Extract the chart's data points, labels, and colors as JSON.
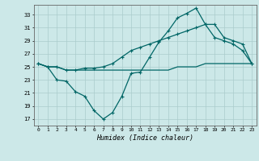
{
  "title": "",
  "xlabel": "Humidex (Indice chaleur)",
  "ylabel": "",
  "bg_color": "#cce8e8",
  "grid_color": "#aacccc",
  "line_color": "#006666",
  "xlim": [
    -0.5,
    23.5
  ],
  "ylim": [
    16.0,
    34.5
  ],
  "yticks": [
    17,
    19,
    21,
    23,
    25,
    27,
    29,
    31,
    33
  ],
  "xticks": [
    0,
    1,
    2,
    3,
    4,
    5,
    6,
    7,
    8,
    9,
    10,
    11,
    12,
    13,
    14,
    15,
    16,
    17,
    18,
    19,
    20,
    21,
    22,
    23
  ],
  "line1_x": [
    0,
    1,
    2,
    3,
    4,
    5,
    6,
    7,
    8,
    9,
    10,
    11,
    12,
    13,
    14,
    15,
    16,
    17,
    18,
    19,
    20,
    21,
    22,
    23
  ],
  "line1_y": [
    25.5,
    25.0,
    25.0,
    24.5,
    24.5,
    24.5,
    24.5,
    24.5,
    24.5,
    24.5,
    24.5,
    24.5,
    24.5,
    24.5,
    24.5,
    25.0,
    25.0,
    25.0,
    25.5,
    25.5,
    25.5,
    25.5,
    25.5,
    25.5
  ],
  "line2_x": [
    0,
    1,
    2,
    3,
    4,
    5,
    6,
    7,
    8,
    9,
    10,
    11,
    12,
    13,
    14,
    15,
    16,
    17,
    18,
    19,
    20,
    21,
    22,
    23
  ],
  "line2_y": [
    25.5,
    25.0,
    25.0,
    24.5,
    24.5,
    24.8,
    24.8,
    25.0,
    25.5,
    26.5,
    27.5,
    28.0,
    28.5,
    29.0,
    29.5,
    30.0,
    30.5,
    31.0,
    31.5,
    29.5,
    29.0,
    28.5,
    27.5,
    25.5
  ],
  "line3_x": [
    0,
    1,
    2,
    3,
    4,
    5,
    6,
    7,
    8,
    9,
    10,
    11,
    12,
    13,
    14,
    15,
    16,
    17,
    18,
    19,
    20,
    21,
    22,
    23
  ],
  "line3_y": [
    25.5,
    25.0,
    23.0,
    22.8,
    21.2,
    20.5,
    18.3,
    17.0,
    18.0,
    20.5,
    24.0,
    24.2,
    26.5,
    28.8,
    30.5,
    32.5,
    33.2,
    34.0,
    31.5,
    31.5,
    29.5,
    29.0,
    28.5,
    25.5
  ]
}
